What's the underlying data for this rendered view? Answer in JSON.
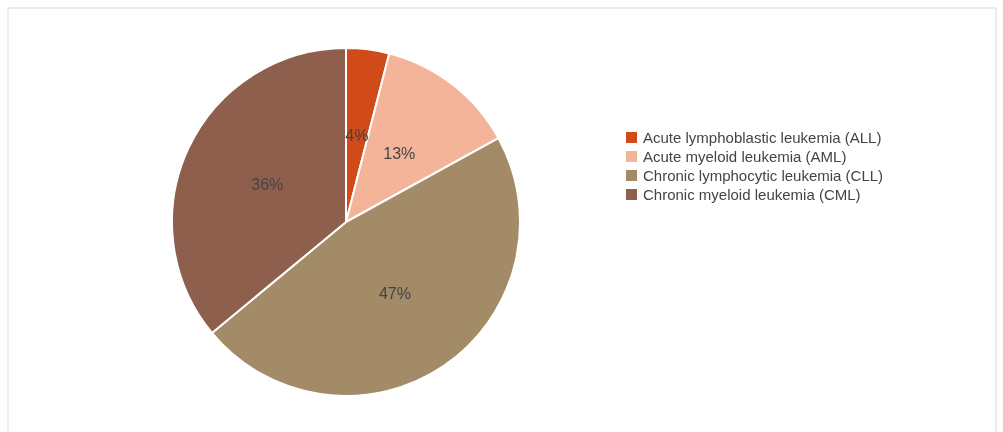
{
  "chart_data": {
    "type": "pie",
    "categories": [
      "Acute lymphoblastic leukemia (ALL)",
      "Acute myeloid leukemia (AML)",
      "Chronic lymphocytic leukemia (CLL)",
      "Chronic myeloid leukemia (CML)"
    ],
    "values": [
      4,
      13,
      47,
      36
    ],
    "colors": [
      "#d14a1a",
      "#f4b49a",
      "#a38b68",
      "#8f5f4d"
    ],
    "value_labels": [
      "4%",
      "13%",
      "47%",
      "36%"
    ],
    "legend": "right"
  }
}
